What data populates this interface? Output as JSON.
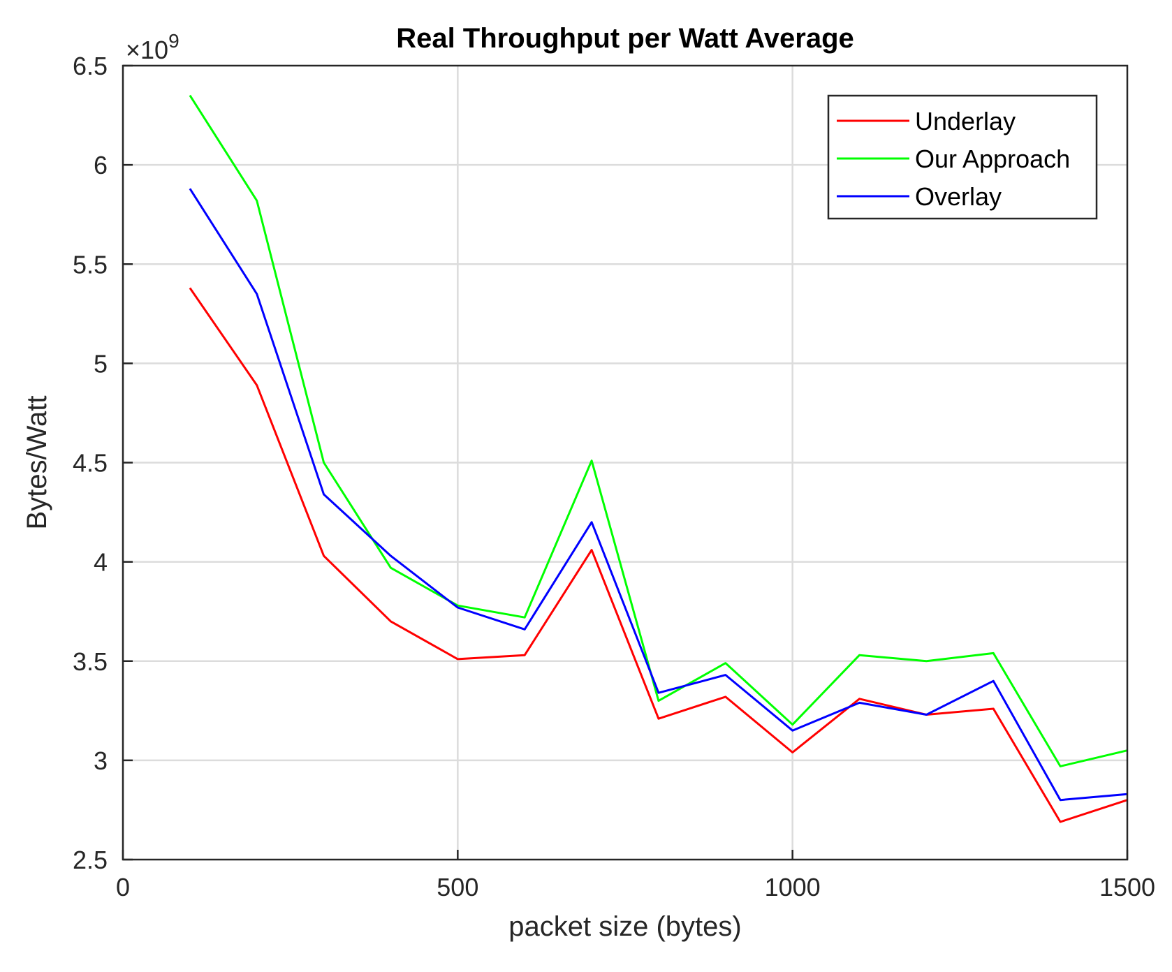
{
  "chart_data": {
    "type": "line",
    "title": "Real Throughput per Watt Average",
    "xlabel": "packet size (bytes)",
    "ylabel": "Bytes/Watt",
    "y_exponent_label": "×10",
    "y_exponent_power": "9",
    "xlim": [
      0,
      1500
    ],
    "ylim": [
      2.5,
      6.5
    ],
    "xticks": [
      0,
      500,
      1000,
      1500
    ],
    "xtick_labels": [
      "0",
      "500",
      "1000",
      "1500"
    ],
    "yticks": [
      2.5,
      3,
      3.5,
      4,
      4.5,
      5,
      5.5,
      6,
      6.5
    ],
    "ytick_labels": [
      "2.5",
      "3",
      "3.5",
      "4",
      "4.5",
      "5",
      "5.5",
      "6",
      "6.5"
    ],
    "grid": true,
    "legend_position": "top-right",
    "x": [
      100,
      200,
      300,
      400,
      500,
      600,
      700,
      800,
      900,
      1000,
      1100,
      1200,
      1300,
      1400,
      1500
    ],
    "series": [
      {
        "name": "Underlay",
        "color": "#ff0000",
        "values": [
          5.38,
          4.89,
          4.03,
          3.7,
          3.51,
          3.53,
          4.06,
          3.21,
          3.32,
          3.04,
          3.31,
          3.23,
          3.26,
          2.69,
          2.8
        ]
      },
      {
        "name": "Our Approach",
        "color": "#00ff00",
        "values": [
          6.35,
          5.82,
          4.5,
          3.97,
          3.78,
          3.72,
          4.51,
          3.3,
          3.49,
          3.18,
          3.53,
          3.5,
          3.54,
          2.97,
          3.05
        ]
      },
      {
        "name": "Overlay",
        "color": "#0000ff",
        "values": [
          5.88,
          5.35,
          4.34,
          4.03,
          3.77,
          3.66,
          4.2,
          3.34,
          3.43,
          3.15,
          3.29,
          3.23,
          3.4,
          2.8,
          2.83
        ]
      }
    ]
  }
}
